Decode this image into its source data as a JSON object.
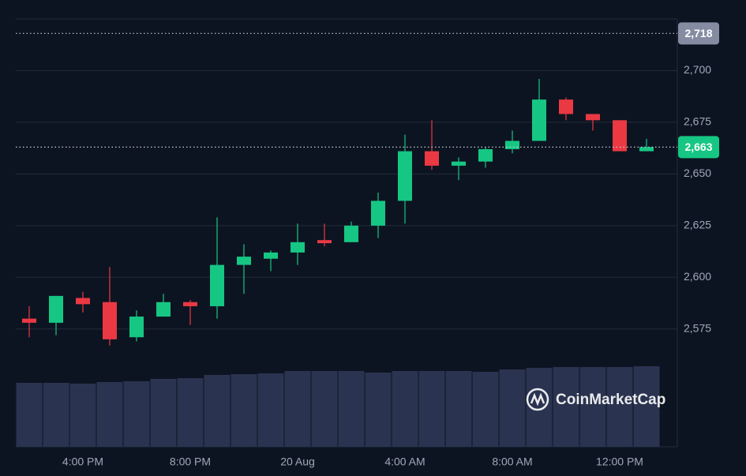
{
  "chart_data": {
    "type": "candlestick",
    "categories": [
      null,
      null,
      "4:00 PM",
      null,
      null,
      null,
      "8:00 PM",
      null,
      null,
      null,
      "20 Aug",
      null,
      null,
      null,
      "4:00 AM",
      null,
      null,
      null,
      "8:00 AM",
      null,
      null,
      null,
      "12:00 PM",
      null
    ],
    "open": [
      2580,
      2578,
      2590,
      2588,
      2571,
      2581,
      2588,
      2586,
      2606,
      2609,
      2612,
      2618,
      2617,
      2625,
      2637,
      2661,
      2654,
      2656,
      2662,
      2666,
      2686,
      2679,
      2676,
      2661
    ],
    "high": [
      2586,
      2591,
      2593,
      2605,
      2584,
      2592,
      2589,
      2629,
      2616,
      2613,
      2626,
      2626,
      2627,
      2641,
      2669,
      2676,
      2658,
      2663,
      2671,
      2696,
      2687,
      2679,
      2676,
      2667
    ],
    "low": [
      2571,
      2572,
      2583,
      2567,
      2569,
      2581,
      2577,
      2580,
      2592,
      2603,
      2606,
      2615,
      2617,
      2619,
      2626,
      2652,
      2647,
      2653,
      2660,
      2666,
      2676,
      2671,
      2661,
      2661
    ],
    "close": [
      2578,
      2591,
      2587,
      2570,
      2581,
      2588,
      2586,
      2606,
      2610,
      2612,
      2617,
      2616.5,
      2625,
      2637,
      2661,
      2654,
      2656,
      2662,
      2666,
      2686,
      2679,
      2676,
      2661,
      2663
    ],
    "volume": [
      81,
      81,
      80,
      82,
      83,
      86,
      87,
      91,
      92,
      93,
      96,
      96,
      96,
      94,
      96,
      96,
      96,
      95,
      98,
      100,
      101,
      101,
      101,
      102
    ],
    "volume_ylim": [
      0,
      542
    ],
    "ylim": [
      2518,
      2725
    ],
    "yticks": [
      {
        "value": 2575,
        "label": "2,575"
      },
      {
        "value": 2600,
        "label": "2,600"
      },
      {
        "value": 2625,
        "label": "2,625"
      },
      {
        "value": 2650,
        "label": "2,650"
      },
      {
        "value": 2675,
        "label": "2,675"
      },
      {
        "value": 2700,
        "label": "2,700"
      }
    ],
    "price_markers": [
      {
        "value": 2718,
        "label": "2,718",
        "color": "#858ca2"
      },
      {
        "value": 2663,
        "label": "2,663",
        "color": "#16c784"
      }
    ],
    "up_color": "#16c784",
    "down_color": "#ea3943",
    "volume_color": "#2a3350",
    "grid": true,
    "watermark": "CoinMarketCap"
  }
}
